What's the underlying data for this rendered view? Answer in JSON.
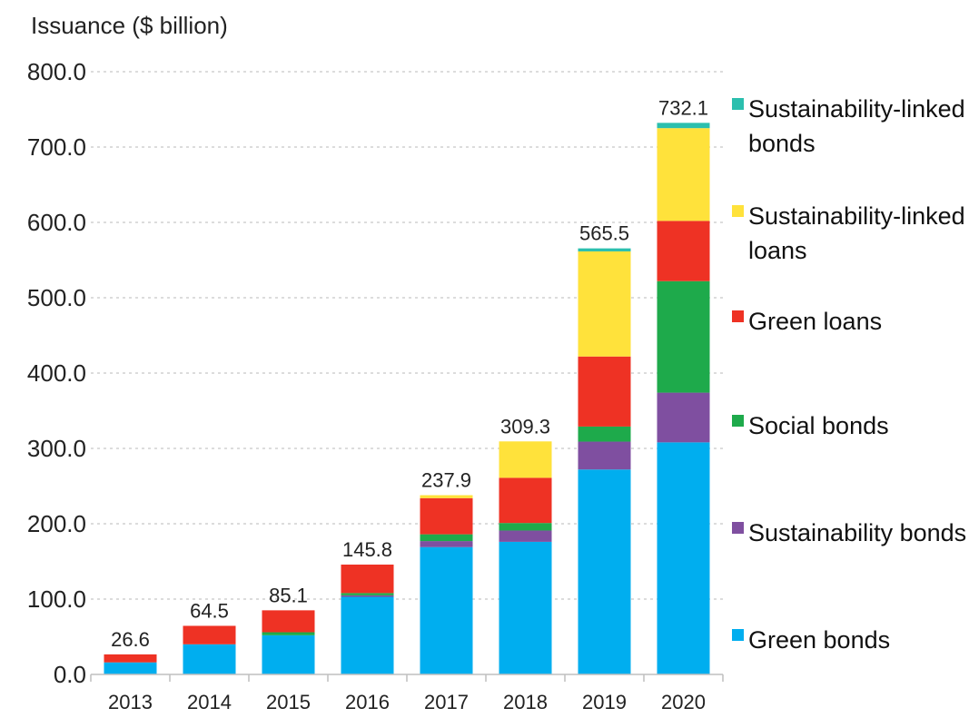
{
  "chart_data": {
    "type": "bar",
    "stacked": true,
    "ylabel": "Issuance ($ billion)",
    "ylim": [
      0,
      800
    ],
    "yticks": [
      "0.0",
      "100.0",
      "200.0",
      "300.0",
      "400.0",
      "500.0",
      "600.0",
      "700.0",
      "800.0"
    ],
    "grid": true,
    "legend_position": "right",
    "categories": [
      "2013",
      "2014",
      "2015",
      "2016",
      "2017",
      "2018",
      "2019",
      "2020"
    ],
    "totals": [
      "26.6",
      "64.5",
      "85.1",
      "145.8",
      "237.9",
      "309.3",
      "565.5",
      "732.1"
    ],
    "series": [
      {
        "name": "Green bonds",
        "color": "#00AEEF",
        "values": [
          16,
          40,
          52,
          103,
          169,
          176,
          272,
          308
        ]
      },
      {
        "name": "Sustainability bonds",
        "color": "#7F4FA0",
        "values": [
          0,
          0,
          0,
          2,
          8,
          15,
          37,
          66
        ]
      },
      {
        "name": "Social bonds",
        "color": "#1EAA4B",
        "values": [
          0,
          0,
          4,
          3,
          9,
          10,
          20,
          148
        ]
      },
      {
        "name": "Green loans",
        "color": "#EE3224",
        "values": [
          10.6,
          24.5,
          29.1,
          37.8,
          48,
          60,
          93,
          80
        ]
      },
      {
        "name": "Sustainability-linked loans",
        "color": "#FFE23B",
        "values": [
          0,
          0,
          0,
          0,
          3.9,
          48.3,
          139.5,
          123.1
        ]
      },
      {
        "name": "Sustainability-linked bonds",
        "color": "#2BBFAE",
        "values": [
          0,
          0,
          0,
          0,
          0,
          0,
          4,
          7
        ]
      }
    ],
    "legend_order": [
      "Sustainability-linked bonds",
      "Sustainability-linked loans",
      "Green loans",
      "Social bonds",
      "Sustainability bonds",
      "Green bonds"
    ],
    "legend_lines": {
      "Sustainability-linked bonds": [
        "Sustainability-linked",
        "bonds"
      ],
      "Sustainability-linked loans": [
        "Sustainability-linked",
        "loans"
      ],
      "Green loans": [
        "Green loans"
      ],
      "Social bonds": [
        "Social bonds"
      ],
      "Sustainability bonds": [
        "Sustainability bonds"
      ],
      "Green bonds": [
        "Green bonds"
      ]
    }
  }
}
